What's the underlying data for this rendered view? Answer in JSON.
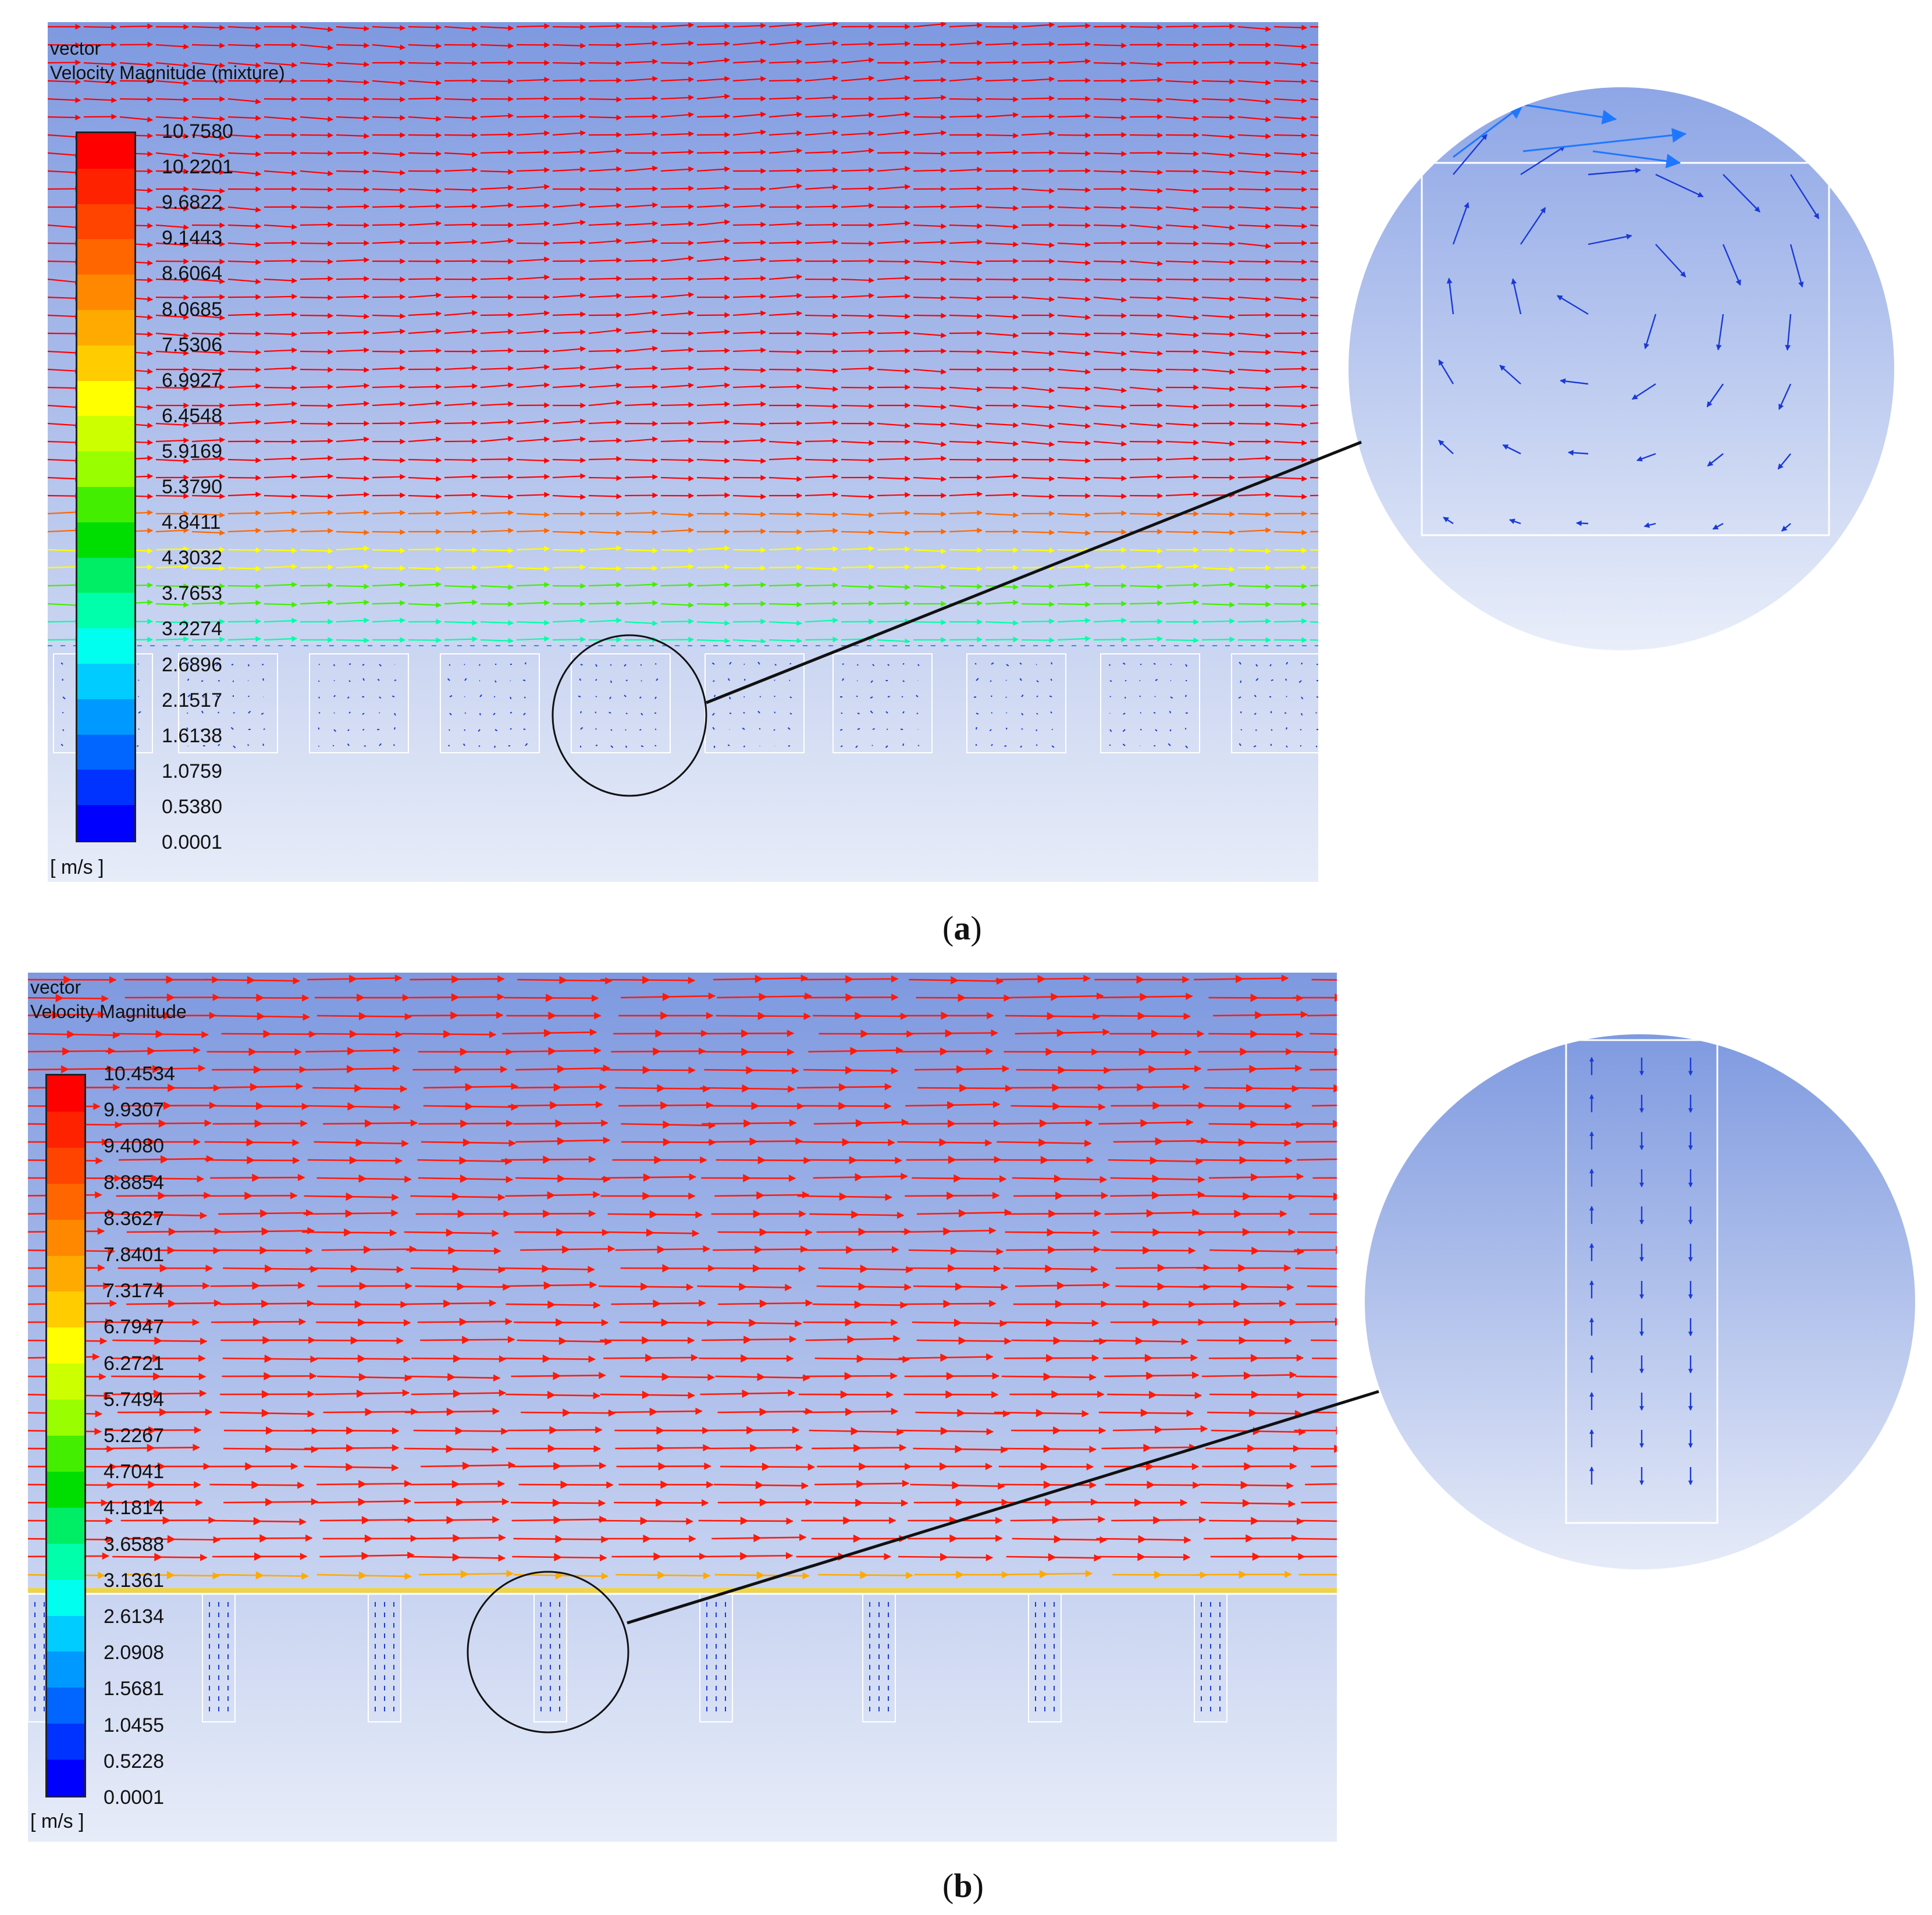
{
  "panels": [
    {
      "id": "a",
      "title_line1": "vector",
      "title_line2": "Velocity Magnitude (mixture)",
      "unit": "[ m/s ]",
      "caption_open": "(",
      "caption_letter": "a",
      "caption_close": ")",
      "legend_ticks": [
        "10.7580",
        "10.2201",
        "9.6822",
        "9.1443",
        "8.6064",
        "8.0685",
        "7.5306",
        "6.9927",
        "6.4548",
        "5.9169",
        "5.3790",
        "4.8411",
        "4.3032",
        "3.7653",
        "3.2274",
        "2.6896",
        "2.1517",
        "1.6138",
        "1.0759",
        "0.5380",
        "0.0001"
      ]
    },
    {
      "id": "b",
      "title_line1": "vector",
      "title_line2": "Velocity Magnitude",
      "unit": "[ m/s ]",
      "caption_open": "(",
      "caption_letter": "b",
      "caption_close": ")",
      "legend_ticks": [
        "10.4534",
        "9.9307",
        "9.4080",
        "8.8854",
        "8.3627",
        "7.8401",
        "7.3174",
        "6.7947",
        "6.2721",
        "5.7494",
        "5.2267",
        "4.7041",
        "4.1814",
        "3.6588",
        "3.1361",
        "2.6134",
        "2.0908",
        "1.5681",
        "1.0455",
        "0.5228",
        "0.0001"
      ]
    }
  ],
  "colors": {
    "legend": [
      "#ff0000",
      "#ff2200",
      "#ff4400",
      "#ff6600",
      "#ff8800",
      "#ffaa00",
      "#ffcc00",
      "#ffff00",
      "#ccff00",
      "#99ff00",
      "#44ee00",
      "#00dd00",
      "#00ee66",
      "#00ffaa",
      "#00ffee",
      "#00ccff",
      "#0099ff",
      "#0066ff",
      "#0033ff",
      "#0000ff"
    ],
    "flow_arrow": "#ff1a0a",
    "cavity_arrow": "#1a3ad6",
    "bg_top": "#7e99e0",
    "bg_bottom": "#e7ecf8"
  }
}
